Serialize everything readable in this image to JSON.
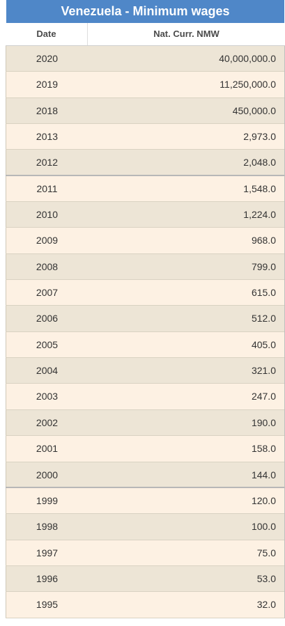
{
  "table": {
    "title": "Venezuela - Minimum wages",
    "columns": [
      "Date",
      "Nat. Curr. NMW"
    ],
    "rows": [
      {
        "date": "2020",
        "value": "40,000,000.0"
      },
      {
        "date": "2019",
        "value": "11,250,000.0"
      },
      {
        "date": "2018",
        "value": "450,000.0"
      },
      {
        "date": "2013",
        "value": "2,973.0"
      },
      {
        "date": "2012",
        "value": "2,048.0"
      },
      {
        "date": "2011",
        "value": "1,548.0"
      },
      {
        "date": "2010",
        "value": "1,224.0"
      },
      {
        "date": "2009",
        "value": "968.0"
      },
      {
        "date": "2008",
        "value": "799.0"
      },
      {
        "date": "2007",
        "value": "615.0"
      },
      {
        "date": "2006",
        "value": "512.0"
      },
      {
        "date": "2005",
        "value": "405.0"
      },
      {
        "date": "2004",
        "value": "321.0"
      },
      {
        "date": "2003",
        "value": "247.0"
      },
      {
        "date": "2002",
        "value": "190.0"
      },
      {
        "date": "2001",
        "value": "158.0"
      },
      {
        "date": "2000",
        "value": "144.0"
      },
      {
        "date": "1999",
        "value": "120.0"
      },
      {
        "date": "1998",
        "value": "100.0"
      },
      {
        "date": "1997",
        "value": "75.0"
      },
      {
        "date": "1996",
        "value": "53.0"
      },
      {
        "date": "1995",
        "value": "32.0"
      }
    ]
  }
}
